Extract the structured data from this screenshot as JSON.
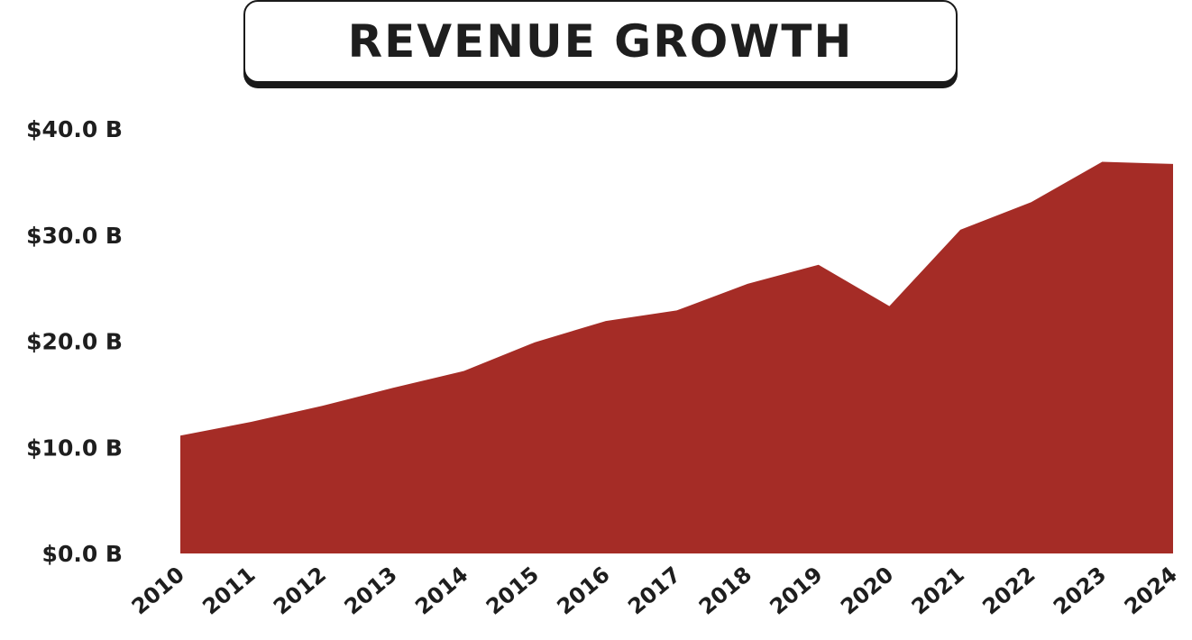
{
  "chart_data": {
    "type": "area",
    "title": "REVENUE GROWTH",
    "xlabel": "",
    "ylabel": "",
    "x": [
      "2010",
      "2011",
      "2012",
      "2013",
      "2014",
      "2015",
      "2016",
      "2017",
      "2018",
      "2019",
      "2020",
      "2021",
      "2022",
      "2023",
      "2024"
    ],
    "series": [
      {
        "name": "Revenue",
        "values": [
          11.1,
          12.4,
          13.9,
          15.6,
          17.2,
          19.9,
          21.9,
          22.9,
          25.4,
          27.2,
          23.3,
          30.5,
          33.1,
          36.9,
          36.7
        ]
      }
    ],
    "ylim": [
      0,
      40
    ],
    "yticks": [
      "$0.0 B",
      "$10.0 B",
      "$20.0 B",
      "$30.0 B",
      "$40.0 B"
    ],
    "ytick_values": [
      0,
      10,
      20,
      30,
      40
    ],
    "grid": false,
    "fill_color": "#a52c26"
  }
}
